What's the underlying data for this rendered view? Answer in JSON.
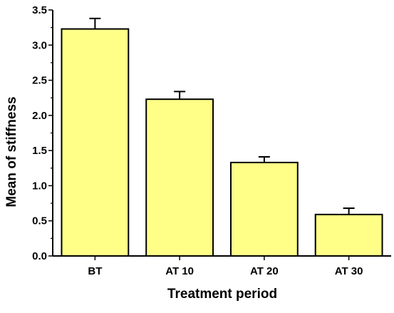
{
  "chart_data": {
    "type": "bar",
    "categories": [
      "BT",
      "AT 10",
      "AT 20",
      "AT 30"
    ],
    "values": [
      3.23,
      2.23,
      1.33,
      0.59
    ],
    "errors": [
      0.15,
      0.11,
      0.08,
      0.09
    ],
    "xlabel": "Treatment period",
    "ylabel": "Mean of stiffness",
    "ylim": [
      0,
      3.5
    ],
    "yticks": [
      "0.0",
      "0.5",
      "1.0",
      "1.5",
      "2.0",
      "2.5",
      "3.0",
      "3.5"
    ],
    "ytick_values": [
      0,
      0.5,
      1.0,
      1.5,
      2.0,
      2.5,
      3.0,
      3.5
    ],
    "grid": false,
    "legend": "none",
    "bar_color": "#ffff88",
    "edge_color": "#000000"
  }
}
